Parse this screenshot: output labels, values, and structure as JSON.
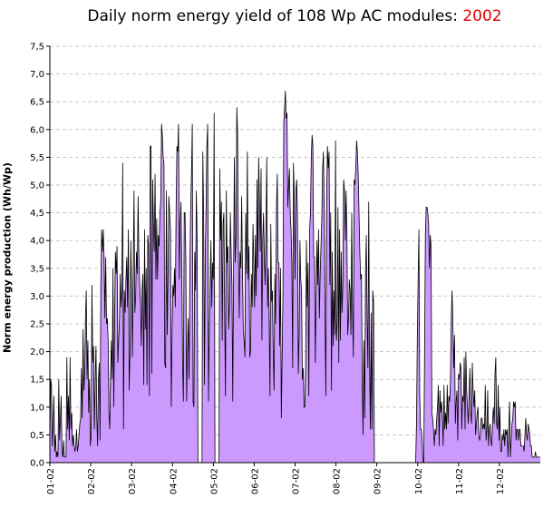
{
  "title": {
    "prefix": "Daily norm energy yield of 108 Wp AC modules: ",
    "year": "2002",
    "year_color": "#e00000"
  },
  "chart_data": {
    "type": "area",
    "title": "Daily norm energy yield of 108 Wp AC modules: 2002",
    "xlabel": "",
    "ylabel": "Norm energy production (Wh/Wp)",
    "ylim": [
      0,
      7.5
    ],
    "y_ticks": [
      "0,0",
      "0,5",
      "1,0",
      "1,5",
      "2,0",
      "2,5",
      "3,0",
      "3,5",
      "4,0",
      "4,5",
      "5,0",
      "5,5",
      "6,0",
      "6,5",
      "7,0",
      "7,5"
    ],
    "x_ticks": [
      "01-02",
      "02-02",
      "03-02",
      "04-02",
      "05-02",
      "06-02",
      "07-02",
      "08-02",
      "09-02",
      "10-02",
      "11-02",
      "12-02"
    ],
    "grid": "horizontal dashed",
    "fill_color": "#cc99ff",
    "line_color": "#000000",
    "series": [
      {
        "values": [
          0.4,
          1.5,
          1.4,
          0.3,
          0.7,
          1.2,
          0.2,
          0.5,
          0.1,
          0.2,
          0.1,
          1.5,
          0.4,
          0.8,
          1.2,
          0.2,
          0.1,
          0.4,
          0.1,
          0.1,
          0.1,
          1.9,
          0.6,
          1.2,
          0.4,
          1.9,
          0.6,
          0.9,
          0.3,
          0.5,
          0.3,
          0.2,
          0.3,
          0.6,
          0.2,
          0.3,
          0.5,
          0.7,
          0.8,
          1.7,
          0.8,
          2.4,
          1.3,
          1.6,
          2.6,
          3.1,
          1.5,
          2.2,
          0.9,
          1.5,
          0.3,
          0.5,
          3.2,
          1.8,
          2.1,
          0.6,
          1.5,
          2.1,
          0.8,
          0.3,
          1.5,
          1.8,
          0.4,
          3.2,
          4.2,
          3.8,
          4.2,
          3.7,
          2.6,
          3.7,
          2.5,
          2.6,
          2.2,
          0.9,
          0.6,
          1.6,
          2.2,
          1.5,
          3.5,
          1.0,
          2.6,
          3.8,
          3.4,
          3.9,
          1.8,
          2.2,
          2.6,
          3.4,
          2.8,
          3.1,
          5.4,
          0.6,
          3.1,
          2.7,
          3.3,
          3.7,
          2.8,
          4.2,
          1.3,
          2.0,
          4.0,
          3.1,
          1.9,
          3.5,
          4.9,
          2.7,
          3.0,
          3.8,
          3.4,
          4.8,
          3.7,
          3.2,
          2.9,
          2.1,
          3.1,
          3.4,
          1.4,
          4.2,
          2.4,
          3.5,
          1.4,
          4.1,
          3.9,
          1.2,
          5.7,
          5.7,
          1.6,
          5.1,
          4.3,
          3.8,
          5.2,
          3.3,
          4.4,
          3.3,
          4.1,
          3.9,
          4.5,
          4.7,
          6.1,
          5.9,
          5.5,
          5.4,
          1.8,
          1.7,
          4.9,
          2.3,
          3.4,
          4.8,
          4.5,
          4.2,
          1.0,
          2.3,
          3.2,
          3.0,
          3.5,
          2.8,
          4.6,
          5.7,
          5.6,
          6.1,
          3.3,
          4.3,
          4.7,
          3.6,
          1.8,
          1.1,
          4.5,
          4.5,
          3.7,
          1.1,
          2.1,
          2.6,
          1.5,
          3.5,
          4.6,
          5.2,
          6.1,
          1.1,
          1.0,
          3.8,
          3.1,
          4.9,
          4.0,
          0,
          0,
          0,
          0,
          0,
          0,
          5.6,
          4.5,
          1.4,
          3.7,
          4.6,
          5.7,
          6.1,
          1.1,
          2.4,
          3.2,
          4.0,
          2.8,
          3.6,
          3.3,
          6.3,
          0,
          0,
          0,
          0,
          0,
          0,
          5.3,
          4.0,
          4.7,
          2.2,
          4.3,
          4.5,
          2.7,
          1.2,
          4.9,
          3.6,
          3.9,
          2.4,
          2.9,
          4.5,
          3.8,
          3.2,
          1.1,
          3.5,
          5.5,
          3.6,
          4.1,
          6.4,
          5.9,
          3.8,
          2.6,
          3.8,
          3.5,
          4.8,
          3.5,
          2.4,
          2.2,
          1.9,
          4.5,
          3.4,
          5.6,
          3.3,
          3.9,
          1.9,
          2.0,
          3.4,
          2.8,
          4.3,
          3.6,
          2.8,
          4.1,
          3.0,
          5.1,
          3.5,
          5.5,
          4.7,
          3.8,
          5.3,
          2.2,
          4.0,
          4.5,
          3.7,
          3.2,
          4.2,
          5.5,
          2.8,
          3.5,
          2.5,
          1.2,
          4.3,
          2.9,
          3.1,
          2.0,
          1.3,
          3.4,
          2.5,
          4.6,
          5.2,
          3.6,
          3.6,
          2.1,
          3.5,
          0.8,
          1.9,
          3.0,
          6.1,
          6.4,
          6.7,
          6.2,
          6.3,
          4.6,
          5.0,
          5.3,
          4.5,
          4.2,
          3.6,
          1.7,
          5.4,
          4.8,
          3.3,
          4.9,
          5.1,
          4.4,
          1.6,
          2.3,
          4.0,
          3.3,
          3.1,
          1.5,
          1.7,
          1.0,
          1.0,
          1.7,
          4.0,
          2.8,
          3.6,
          1.2,
          4.2,
          4.5,
          5.5,
          5.9,
          5.7,
          3.7,
          3.7,
          1.8,
          3.1,
          4.0,
          3.2,
          4.2,
          2.6,
          3.4,
          3.9,
          4.4,
          5.3,
          5.6,
          4.6,
          2.7,
          1.2,
          4.8,
          5.7,
          5.3,
          5.6,
          3.2,
          4.5,
          1.3,
          3.8,
          2.1,
          3.1,
          2.3,
          5.8,
          2.2,
          2.5,
          4.6,
          1.8,
          4.2,
          2.2,
          3.8,
          2.7,
          3.2,
          5.1,
          4.9,
          4.0,
          4.9,
          4.2,
          2.3,
          2.6,
          3.3,
          3.1,
          2.3,
          4.5,
          2.8,
          1.9,
          5.1,
          5.0,
          5.3,
          5.8,
          5.6,
          5.2,
          4.5,
          3.8,
          3.3,
          3.4,
          1.5,
          0.5,
          2.2,
          0.8,
          3.4,
          4.1,
          2.6,
          1.7,
          4.7,
          1.9,
          0.6,
          2.7,
          0.6,
          3.1,
          2.9,
          0,
          0,
          0,
          0,
          0,
          0,
          0,
          0,
          0,
          0,
          0,
          0,
          0,
          0,
          0,
          0,
          0,
          0,
          0,
          0,
          0,
          0,
          0,
          0,
          0,
          0,
          0,
          0,
          0,
          0,
          0,
          0,
          0,
          0,
          0,
          0,
          0,
          0,
          0,
          0,
          0,
          0,
          0,
          0,
          0,
          0,
          0,
          0,
          0,
          0,
          0,
          0,
          0.7,
          2.2,
          3.3,
          4.2,
          1.2,
          0.6,
          0.6,
          0.4,
          0,
          0,
          2.0,
          4.1,
          4.6,
          4.6,
          4.5,
          4.3,
          3.5,
          4.1,
          3.9,
          0.9,
          0.8,
          0.6,
          0.3,
          0.6,
          0.5,
          0.8,
          1.0,
          1.4,
          0.3,
          1.3,
          0.9,
          1.1,
          0.8,
          0.3,
          1.4,
          0.6,
          0.9,
          0.6,
          1.4,
          0.7,
          1.2,
          1.1,
          1.5,
          2.6,
          3.1,
          2.5,
          1.7,
          2.3,
          0.7,
          1.1,
          1.3,
          0.4,
          1.6,
          1.5,
          1.8,
          1.7,
          0.6,
          1.2,
          1.1,
          1.9,
          0.6,
          2.0,
          1.3,
          1.0,
          0.7,
          1.2,
          1.7,
          0.9,
          0.7,
          1.8,
          1.3,
          1.0,
          1.3,
          0.5,
          0.7,
          0.9,
          1.0,
          0.5,
          0.4,
          0.5,
          0.8,
          0.8,
          0.6,
          0.7,
          0.6,
          1.4,
          0.4,
          0.6,
          1.3,
          0.3,
          0.6,
          0.7,
          0.4,
          0.3,
          0.7,
          1.0,
          0.7,
          1.6,
          1.9,
          0.7,
          0.6,
          1.4,
          0.4,
          1.0,
          0.2,
          0.2,
          0.5,
          0.4,
          0.6,
          0.3,
          0.6,
          0.5,
          0.6,
          0.1,
          0.6,
          1.1,
          0.1,
          0.4,
          0.7,
          0.8,
          1.1,
          1.0,
          1.1,
          0.4,
          0.6,
          0.6,
          0.4,
          0.6,
          0.6,
          0.3,
          0.3,
          0.3,
          0.3,
          0.2,
          0.5,
          0.8,
          0.5,
          0.4,
          0.7,
          0.6,
          0.5,
          0.3,
          0.3,
          0.1,
          0.1,
          0.1,
          0.1,
          0.2,
          0.1,
          0.1,
          0.1,
          0.1,
          0.1,
          0.1
        ]
      }
    ]
  }
}
